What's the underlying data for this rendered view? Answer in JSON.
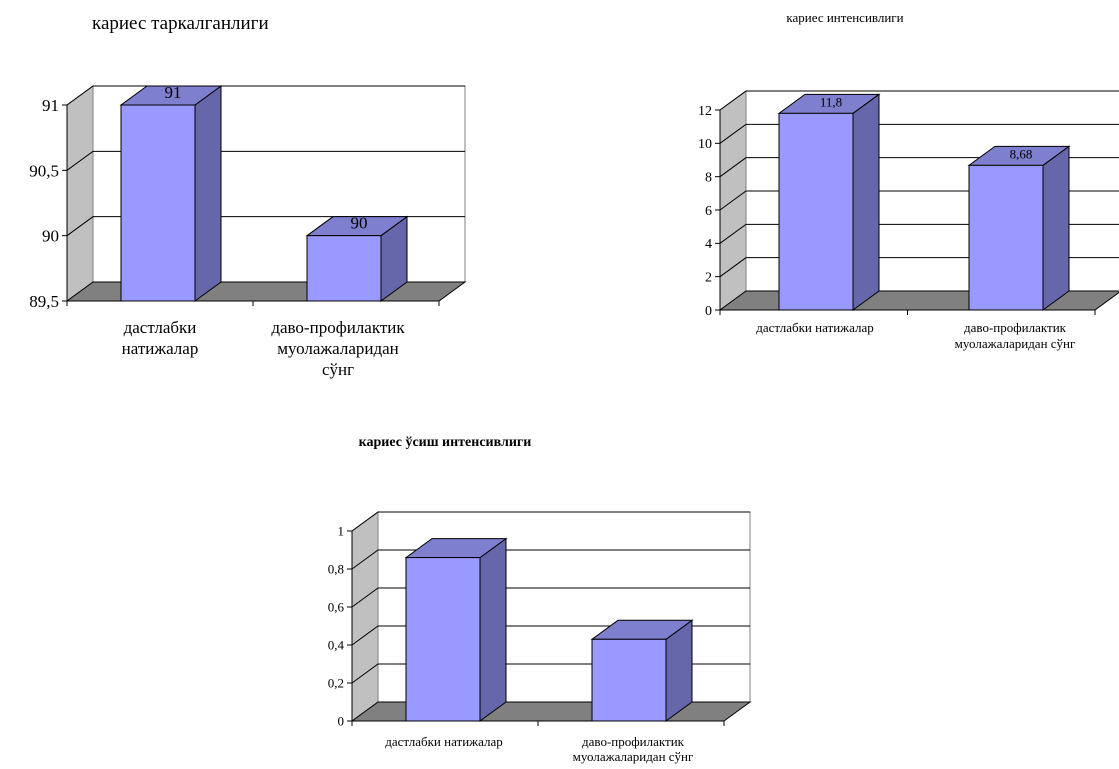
{
  "colors": {
    "bar_front": "#9999ff",
    "bar_side": "#6666aa",
    "bar_top": "#7f7fcf",
    "wall": "#c0c0c0",
    "floor": "#808080",
    "grid": "#000000",
    "background": "#ffffff"
  },
  "chart_data": [
    {
      "type": "bar",
      "title": "кариес таркалганлиги",
      "categories": [
        "дастлабки натижалар",
        "даво-профилактик муолажаларидан сўнг"
      ],
      "category_lines": [
        [
          "дастлабки",
          "натижалар"
        ],
        [
          "даво-профилактик",
          "муолажаларидан",
          "сўнг"
        ]
      ],
      "values": [
        91,
        90
      ],
      "data_labels": [
        "91",
        "90"
      ],
      "ylim": [
        89.5,
        91
      ],
      "yticks": [
        89.5,
        90,
        90.5,
        91
      ],
      "ytick_labels": [
        "89,5",
        "90",
        "90,5",
        "91"
      ],
      "grid": true,
      "legend": "none",
      "style": "3d"
    },
    {
      "type": "bar",
      "title": "кариес интенсивлиги",
      "categories": [
        "дастлабки натижалар",
        "даво-профилактик муолажаларидан сўнг"
      ],
      "category_lines": [
        [
          "дастлабки натижалар"
        ],
        [
          "даво-профилактик",
          "муолажаларидан сўнг"
        ]
      ],
      "values": [
        11.8,
        8.68
      ],
      "data_labels": [
        "11,8",
        "8,68"
      ],
      "ylim": [
        0,
        12
      ],
      "yticks": [
        0,
        2,
        4,
        6,
        8,
        10,
        12
      ],
      "ytick_labels": [
        "0",
        "2",
        "4",
        "6",
        "8",
        "10",
        "12"
      ],
      "grid": true,
      "legend": "none",
      "style": "3d"
    },
    {
      "type": "bar",
      "title": "кариес ўсиш интенсивлиги",
      "categories": [
        "дастлабки натижалар",
        "даво-профилактик муолажаларидан сўнг"
      ],
      "category_lines": [
        [
          "дастлабки натижалар"
        ],
        [
          "даво-профилактик",
          "муолажаларидан сўнг"
        ]
      ],
      "values": [
        0.86,
        0.43
      ],
      "data_labels": [
        "",
        ""
      ],
      "ylim": [
        0,
        1
      ],
      "yticks": [
        0,
        0.2,
        0.4,
        0.6,
        0.8,
        1
      ],
      "ytick_labels": [
        "0",
        "0,2",
        "0,4",
        "0,6",
        "0,8",
        "1"
      ],
      "grid": true,
      "legend": "none",
      "style": "3d"
    }
  ]
}
